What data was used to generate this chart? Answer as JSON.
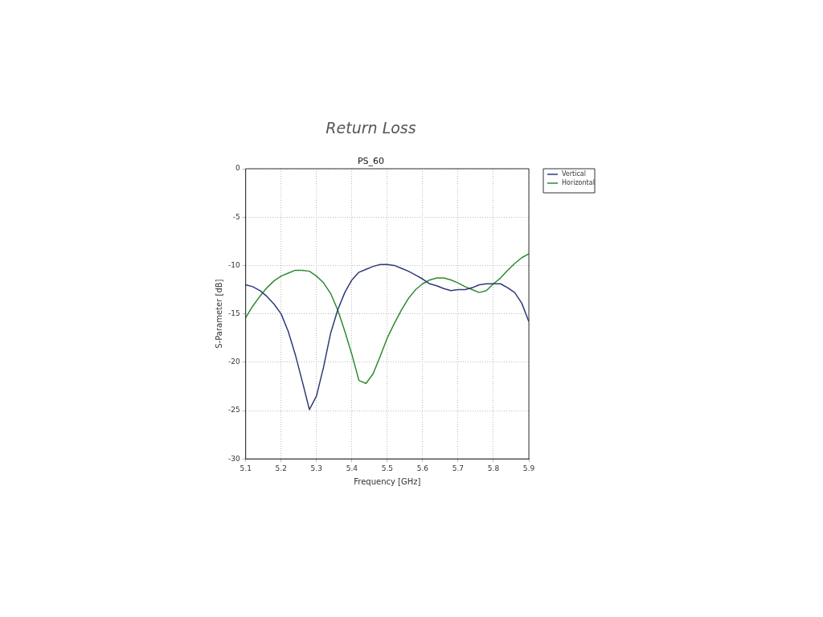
{
  "chart_data": {
    "type": "line",
    "title": "Return Loss",
    "subtitle": "PS_60",
    "xlabel": "Frequency [GHz]",
    "ylabel": "S-Parameter [dB]",
    "xlim": [
      5.1,
      5.9
    ],
    "xticks": [
      5.1,
      5.2,
      5.3,
      5.4,
      5.5,
      5.6,
      5.7,
      5.8,
      5.9
    ],
    "ylim": [
      -30,
      0
    ],
    "yticks": [
      -30,
      -25,
      -20,
      -15,
      -10,
      -5,
      0
    ],
    "grid": true,
    "legend": "top right",
    "marker": "none",
    "line_style": "solid",
    "series": [
      {
        "name": "Vertical",
        "color": "#2e3a7a",
        "x": [
          5.1,
          5.12,
          5.14,
          5.16,
          5.18,
          5.2,
          5.22,
          5.24,
          5.26,
          5.28,
          5.29,
          5.3,
          5.32,
          5.34,
          5.36,
          5.38,
          5.4,
          5.42,
          5.44,
          5.46,
          5.48,
          5.5,
          5.52,
          5.54,
          5.56,
          5.58,
          5.6,
          5.62,
          5.64,
          5.66,
          5.68,
          5.7,
          5.72,
          5.74,
          5.76,
          5.78,
          5.8,
          5.82,
          5.84,
          5.86,
          5.88,
          5.9
        ],
        "values": [
          -12.0,
          -12.2,
          -12.6,
          -13.2,
          -14.0,
          -15.0,
          -16.8,
          -19.2,
          -22.0,
          -24.9,
          -24.2,
          -23.5,
          -20.5,
          -17.0,
          -14.6,
          -12.8,
          -11.5,
          -10.7,
          -10.4,
          -10.1,
          -9.9,
          -9.9,
          -10.0,
          -10.3,
          -10.6,
          -11.0,
          -11.4,
          -11.9,
          -12.1,
          -12.4,
          -12.6,
          -12.5,
          -12.5,
          -12.3,
          -12.0,
          -11.9,
          -11.9,
          -11.9,
          -12.3,
          -12.8,
          -13.9,
          -15.8
        ]
      },
      {
        "name": "Horizontal",
        "color": "#2e8b2e",
        "x": [
          5.1,
          5.12,
          5.14,
          5.16,
          5.18,
          5.2,
          5.22,
          5.24,
          5.26,
          5.28,
          5.3,
          5.32,
          5.34,
          5.36,
          5.38,
          5.4,
          5.42,
          5.44,
          5.46,
          5.48,
          5.5,
          5.52,
          5.54,
          5.56,
          5.58,
          5.6,
          5.62,
          5.64,
          5.66,
          5.68,
          5.7,
          5.72,
          5.74,
          5.76,
          5.78,
          5.8,
          5.82,
          5.84,
          5.86,
          5.88,
          5.9
        ],
        "values": [
          -15.4,
          -14.2,
          -13.2,
          -12.3,
          -11.6,
          -11.1,
          -10.8,
          -10.5,
          -10.5,
          -10.6,
          -11.1,
          -11.8,
          -12.9,
          -14.6,
          -16.8,
          -19.2,
          -21.9,
          -22.2,
          -21.2,
          -19.4,
          -17.5,
          -16.0,
          -14.6,
          -13.4,
          -12.5,
          -11.9,
          -11.5,
          -11.3,
          -11.3,
          -11.5,
          -11.8,
          -12.2,
          -12.5,
          -12.8,
          -12.6,
          -11.9,
          -11.3,
          -10.5,
          -9.8,
          -9.2,
          -8.8
        ]
      }
    ]
  }
}
